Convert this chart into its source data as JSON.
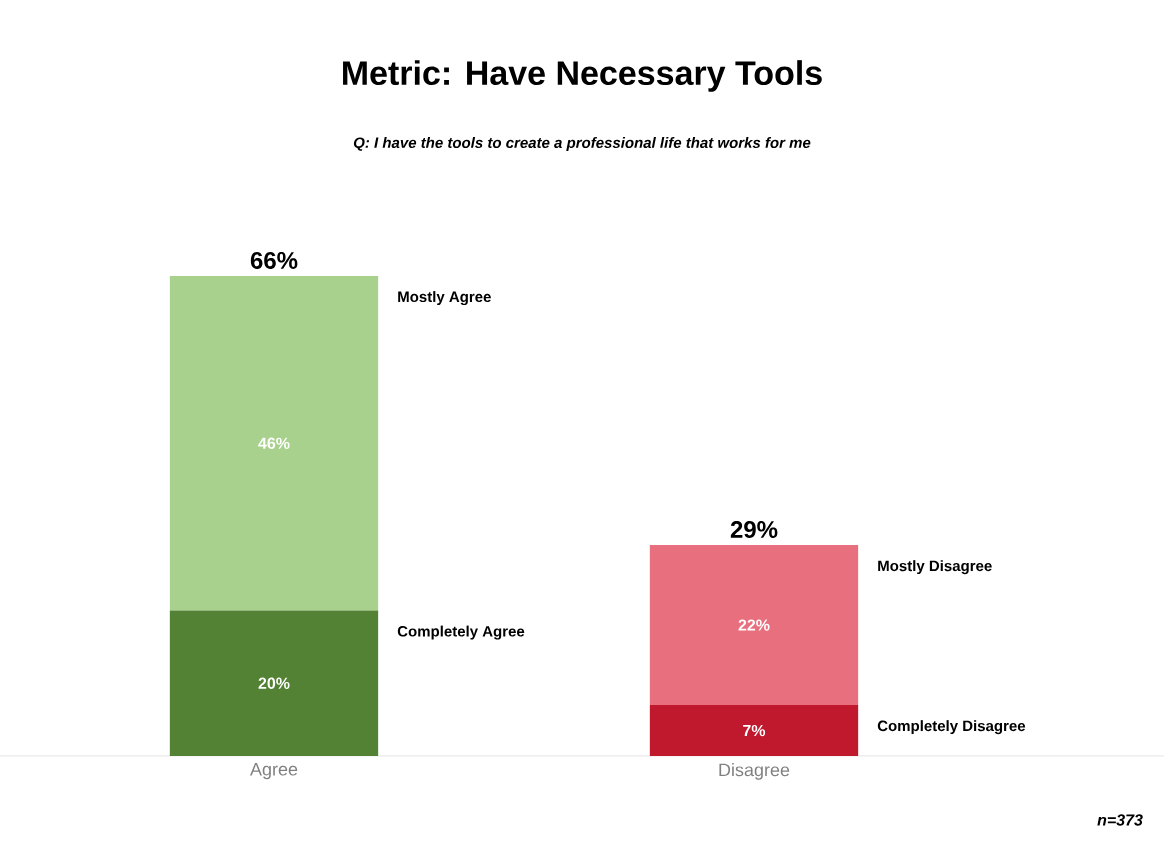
{
  "chart_data": {
    "type": "bar",
    "title": "Metric: Have Necessary Tools",
    "subtitle": "Q: I have the tools to create a professional life that works for me",
    "categories": [
      "Agree",
      "Disagree"
    ],
    "stacked": true,
    "series": [
      {
        "name": "Completely Agree",
        "color": "#548235",
        "values": [
          20,
          null
        ],
        "value_labels": [
          "20%",
          null
        ]
      },
      {
        "name": "Mostly Agree",
        "color": "#a9d18e",
        "values": [
          46,
          null
        ],
        "value_labels": [
          "46%",
          null
        ]
      },
      {
        "name": "Completely Disagree",
        "color": "#c0182c",
        "values": [
          null,
          7
        ],
        "value_labels": [
          null,
          "7%"
        ]
      },
      {
        "name": "Mostly Disagree",
        "color": "#e8707e",
        "values": [
          null,
          22
        ],
        "value_labels": [
          null,
          "22%"
        ]
      }
    ],
    "totals": [
      "66%",
      "29%"
    ],
    "annotations": [
      "n=373"
    ]
  }
}
